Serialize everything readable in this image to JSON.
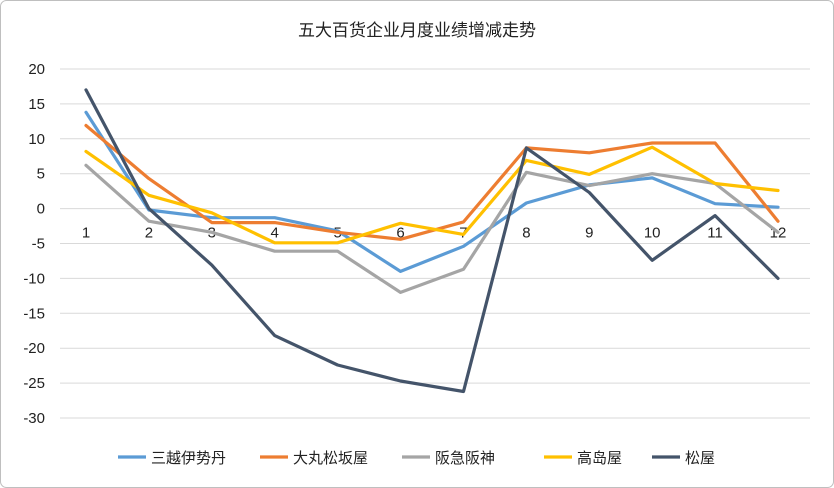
{
  "chart_data": {
    "type": "line",
    "title": "五大百货企业月度业绩增减走势",
    "xlabel": "",
    "ylabel": "",
    "categories": [
      "1",
      "2",
      "3",
      "4",
      "5",
      "6",
      "7",
      "8",
      "9",
      "10",
      "11",
      "12"
    ],
    "ylim": [
      -30,
      20
    ],
    "yticks": [
      20,
      15,
      10,
      5,
      0,
      -5,
      -10,
      -15,
      -20,
      -25,
      -30
    ],
    "grid": true,
    "legend_position": "bottom",
    "series": [
      {
        "name": "三越伊势丹",
        "color": "#5b9bd5",
        "values": [
          13.8,
          -0.2,
          -1.3,
          -1.3,
          -3.2,
          -9.0,
          -5.4,
          0.8,
          3.4,
          4.4,
          0.7,
          0.2
        ]
      },
      {
        "name": "大丸松坂屋",
        "color": "#ed7d31",
        "values": [
          11.9,
          4.3,
          -2.0,
          -2.0,
          -3.4,
          -4.4,
          -1.9,
          8.7,
          8.0,
          9.4,
          9.4,
          -1.8
        ]
      },
      {
        "name": "阪急阪神",
        "color": "#a5a5a5",
        "values": [
          6.2,
          -1.8,
          -3.4,
          -6.1,
          -6.1,
          -12.0,
          -8.7,
          5.2,
          3.3,
          5.0,
          3.6,
          -3.4
        ]
      },
      {
        "name": "高岛屋",
        "color": "#ffc000",
        "values": [
          8.2,
          1.9,
          -0.6,
          -4.9,
          -4.9,
          -2.1,
          -3.7,
          6.9,
          4.9,
          8.8,
          3.6,
          2.6
        ]
      },
      {
        "name": "松屋",
        "color": "#44546a",
        "values": [
          17.0,
          0.0,
          -8.1,
          -18.2,
          -22.4,
          -24.7,
          -26.2,
          8.7,
          2.3,
          -7.4,
          -1.0,
          -10.0
        ]
      }
    ]
  }
}
